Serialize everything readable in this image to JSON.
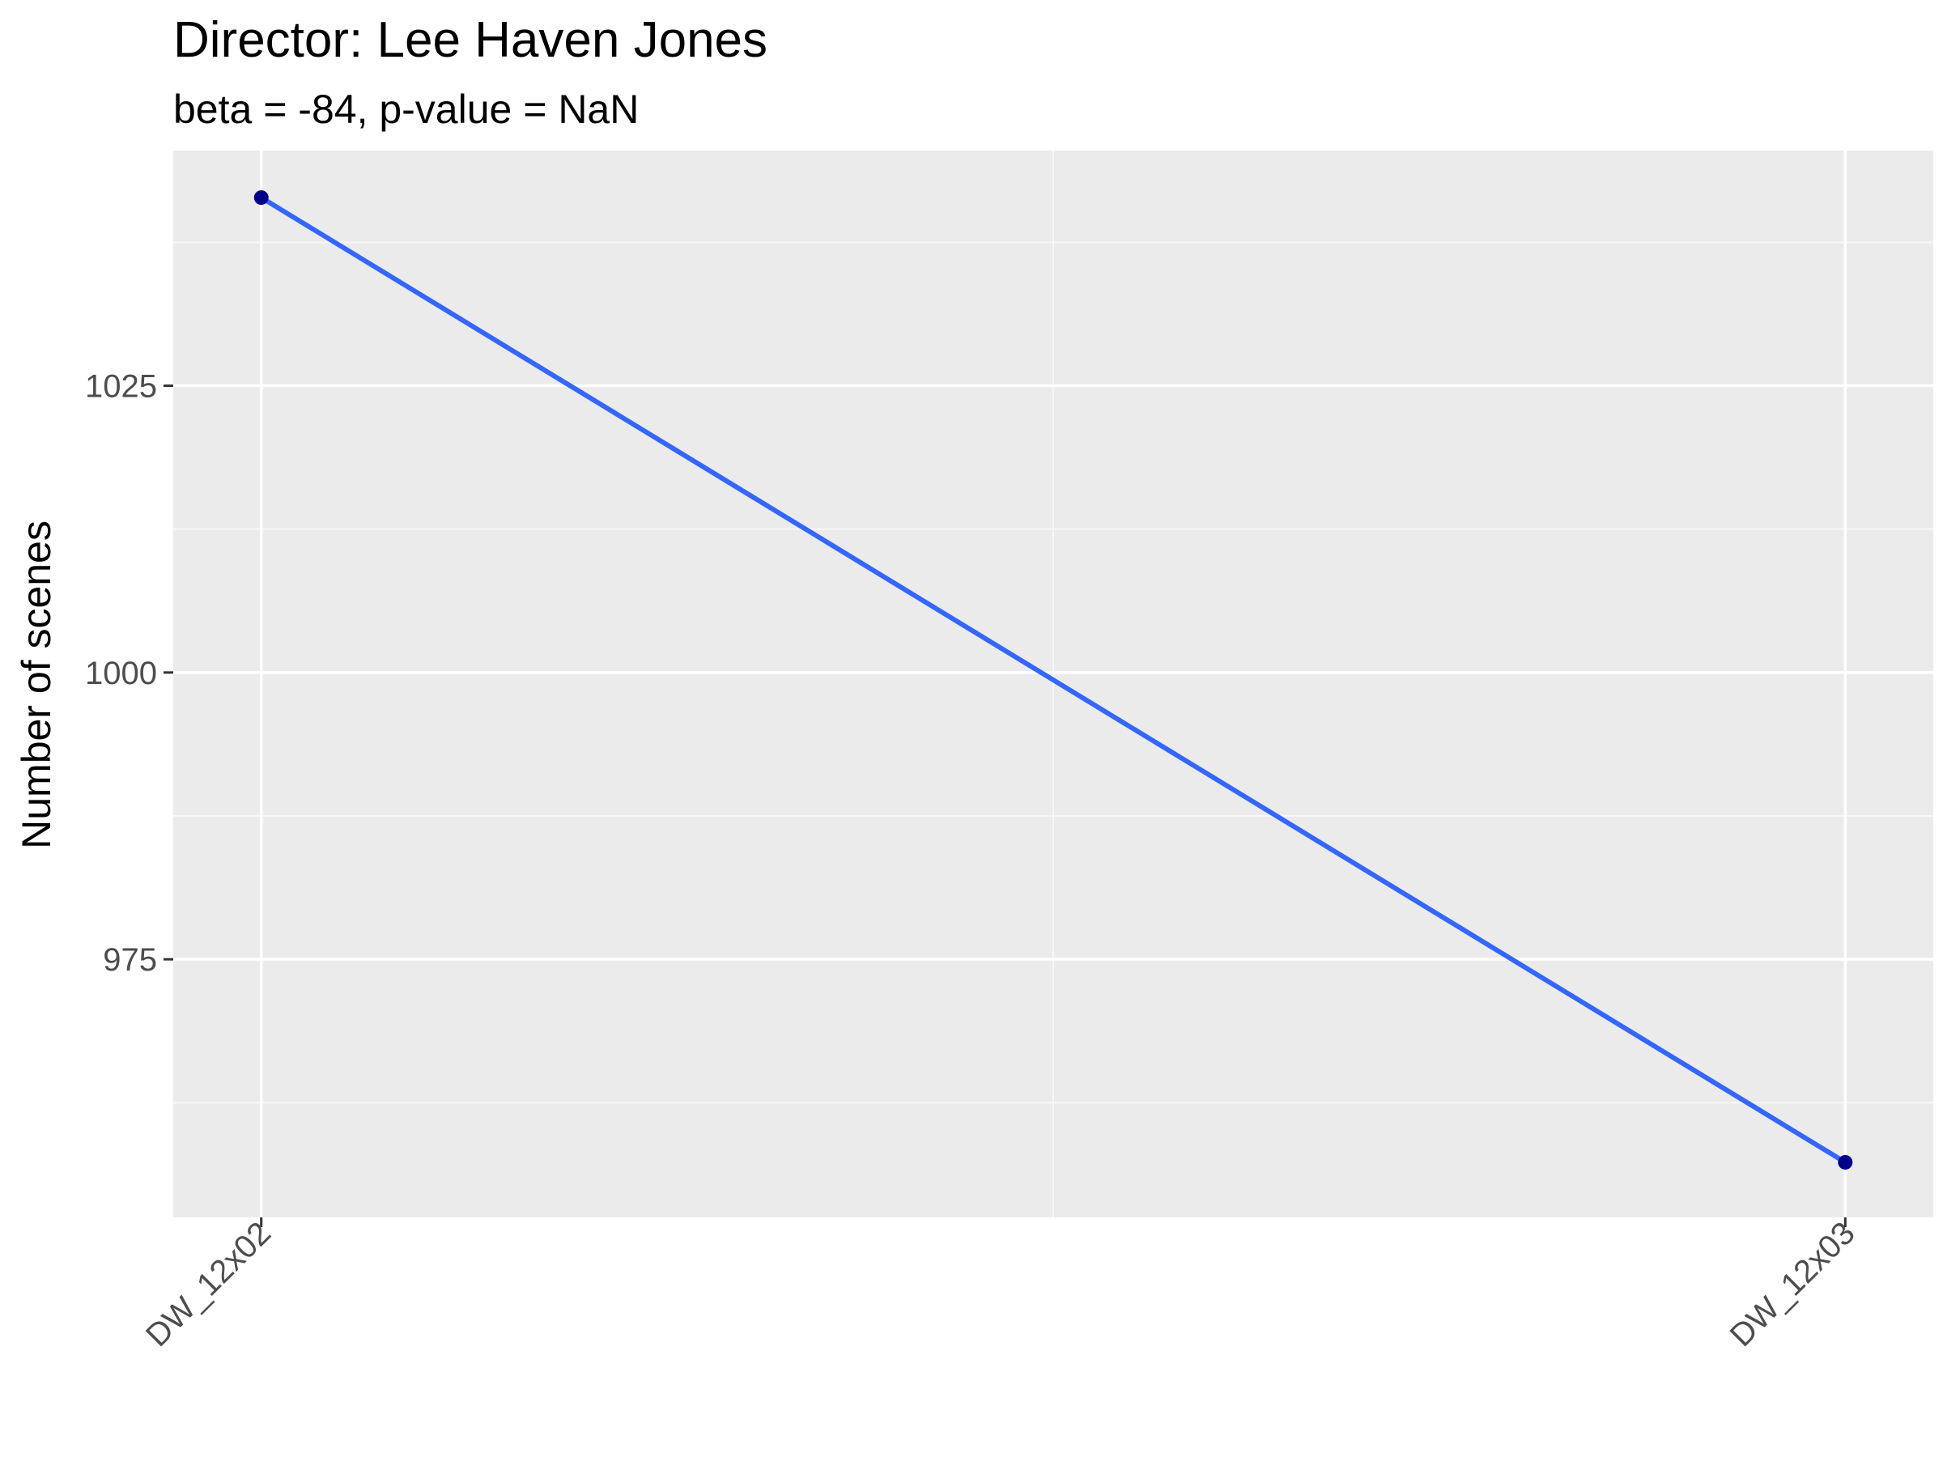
{
  "chart_data": {
    "type": "line",
    "title": "Director: Lee Haven Jones",
    "subtitle": "beta = -84, p-value = NaN",
    "xlabel": "",
    "ylabel": "Number of scenes",
    "categories": [
      "DW_12x02",
      "DW_12x03"
    ],
    "series": [
      {
        "values": [
          1041.4,
          957.3
        ]
      }
    ],
    "fit_line": {
      "start": 1041.4,
      "end": 957.3
    },
    "yticks": [
      975,
      1000,
      1025
    ],
    "ylim": [
      952.5,
      1045.5
    ],
    "grid": true,
    "legend": "none",
    "colors": {
      "panel": "#EBEBEB",
      "grid_major": "#FFFFFF",
      "grid_minor": "#F7F7F7",
      "line": "#3366FF",
      "point": "#00008B"
    }
  }
}
